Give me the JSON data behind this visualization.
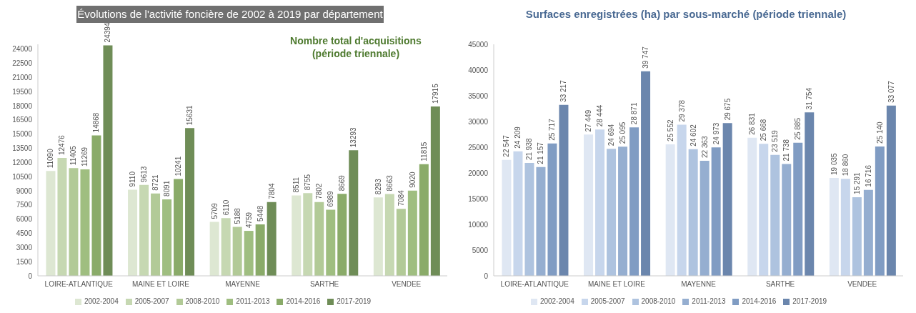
{
  "chart_data": [
    {
      "type": "bar",
      "title": "Évolutions de l'activité foncière de 2002 à 2019 par département",
      "subtitle": "Nombre total d'acquisitions (période triennale)",
      "categories": [
        "LOIRE-ATLANTIQUE",
        "MAINE ET LOIRE",
        "MAYENNE",
        "SARTHE",
        "VENDEE"
      ],
      "series": [
        {
          "name": "2002-2004",
          "color": "#dde7d2",
          "values": [
            11090,
            9110,
            5709,
            8511,
            8293
          ]
        },
        {
          "name": "2005-2007",
          "color": "#c6d8b2",
          "values": [
            12476,
            9613,
            6110,
            8755,
            8663
          ]
        },
        {
          "name": "2008-2010",
          "color": "#b2ca97",
          "values": [
            11405,
            8721,
            5188,
            7802,
            7084
          ]
        },
        {
          "name": "2011-2013",
          "color": "#9fbe80",
          "values": [
            11269,
            8091,
            4759,
            6989,
            9020
          ]
        },
        {
          "name": "2014-2016",
          "color": "#8aab69",
          "values": [
            14868,
            10241,
            5448,
            8669,
            11815
          ]
        },
        {
          "name": "2017-2019",
          "color": "#6f8d57",
          "values": [
            24394,
            15631,
            7804,
            13293,
            17915
          ]
        }
      ],
      "ylim": [
        0,
        24500
      ],
      "yticks": [
        0,
        1500,
        3000,
        4500,
        6000,
        7500,
        9000,
        10500,
        12000,
        13500,
        15000,
        16500,
        18000,
        19500,
        21000,
        22500,
        24000
      ],
      "data_labels": true,
      "legend": "bottom",
      "grid": false
    },
    {
      "type": "bar",
      "title": "Surfaces enregistrées (ha) par sous-marché (période triennale)",
      "categories": [
        "LOIRE-ATLANTIQUE",
        "MAINE ET LOIRE",
        "MAYENNE",
        "SARTHE",
        "VENDEE"
      ],
      "series": [
        {
          "name": "2002-2004",
          "color": "#dfe7f3",
          "values": [
            22547,
            27449,
            25552,
            26831,
            19035
          ],
          "value_labels": [
            "22 547",
            "27 449",
            "25 552",
            "26 831",
            "19 035"
          ]
        },
        {
          "name": "2005-2007",
          "color": "#c7d6ec",
          "values": [
            24209,
            28444,
            29378,
            25668,
            18860
          ],
          "value_labels": [
            "24 209",
            "28 444",
            "29 378",
            "25 668",
            "18 860"
          ]
        },
        {
          "name": "2008-2010",
          "color": "#aec3df",
          "values": [
            21938,
            24694,
            24602,
            23519,
            15291
          ],
          "value_labels": [
            "21 938",
            "24 694",
            "24 602",
            "23 519",
            "15 291"
          ]
        },
        {
          "name": "2011-2013",
          "color": "#95aed0",
          "values": [
            21157,
            25095,
            22363,
            21738,
            16716
          ],
          "value_labels": [
            "21 157",
            "25 095",
            "22 363",
            "21 738",
            "16 716"
          ]
        },
        {
          "name": "2014-2016",
          "color": "#809cc3",
          "values": [
            25717,
            28871,
            24973,
            25885,
            25140
          ],
          "value_labels": [
            "25 717",
            "28 871",
            "24 973",
            "25 885",
            "25 140"
          ]
        },
        {
          "name": "2017-2019",
          "color": "#6b86ad",
          "values": [
            33217,
            39747,
            29675,
            31754,
            33077
          ],
          "value_labels": [
            "33 217",
            "39 747",
            "29 675",
            "31 754",
            "33 077"
          ]
        }
      ],
      "ylim": [
        0,
        45000
      ],
      "yticks": [
        0,
        5000,
        10000,
        15000,
        20000,
        25000,
        30000,
        35000,
        40000,
        45000
      ],
      "legend": "bottom",
      "grid": false
    }
  ]
}
